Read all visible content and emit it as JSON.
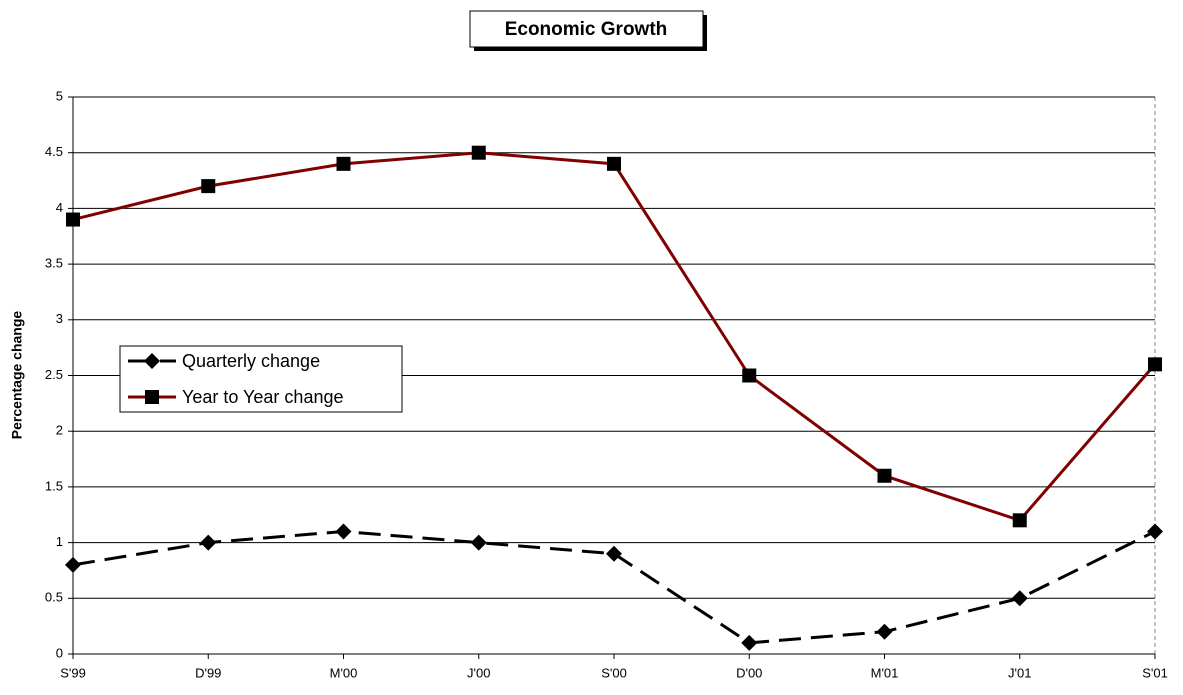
{
  "chart_data": {
    "type": "line",
    "title": "Economic Growth",
    "y_label": "Percentage change",
    "categories": [
      "S'99",
      "D'99",
      "M'00",
      "J'00",
      "S'00",
      "D'00",
      "M'01",
      "J'01",
      "S'01"
    ],
    "series": [
      {
        "name": "Quarterly change",
        "color": "#000000",
        "marker": "diamond",
        "dashed": true,
        "values": [
          0.8,
          1.0,
          1.1,
          1.0,
          0.9,
          0.1,
          0.2,
          0.5,
          1.1
        ]
      },
      {
        "name": "Year to Year change",
        "color": "#800000",
        "marker": "square",
        "dashed": false,
        "values": [
          3.9,
          4.2,
          4.4,
          4.5,
          4.4,
          2.5,
          1.6,
          1.2,
          2.6
        ]
      }
    ],
    "ylim": [
      0,
      5
    ],
    "yticks": [
      0,
      0.5,
      1,
      1.5,
      2,
      2.5,
      3,
      3.5,
      4,
      4.5,
      5
    ],
    "grid": true,
    "legend": "left"
  }
}
